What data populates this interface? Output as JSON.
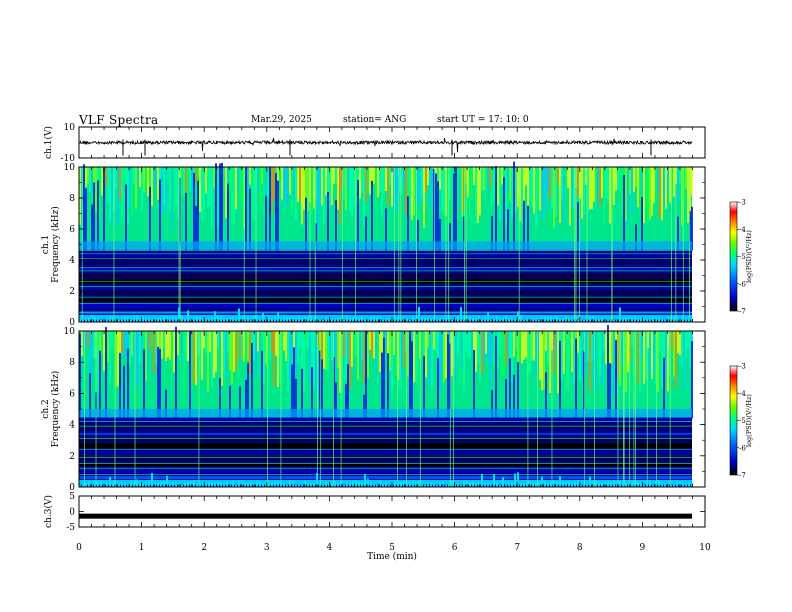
{
  "header": {
    "title": "VLF Spectra",
    "date": "Mar.29, 2025",
    "station": "station= ANG",
    "start": "start  UT  =   17: 10: 0"
  },
  "colors": {
    "spectrogram_background": "#00007a",
    "colormap": [
      "#000000",
      "#00004a",
      "#0000c8",
      "#0050ff",
      "#00c8ff",
      "#00ff96",
      "#50ff00",
      "#ffff00",
      "#ff8000",
      "#ff0000",
      "#ffffff"
    ]
  },
  "chart_data": [
    {
      "type": "line",
      "panel": "ch1-waveform",
      "ylabel": "ch.1(V)",
      "ylim": [
        -10,
        10
      ],
      "yticks": [
        "10",
        "-10"
      ],
      "xlim": [
        0,
        10
      ],
      "baseline": 0,
      "grid": false
    },
    {
      "type": "heatmap",
      "panel": "ch1-spectrogram",
      "ylabel_channel": "ch.1",
      "ylabel": "Frequency (kHz)",
      "ylim": [
        0,
        10
      ],
      "yticks": [
        "0",
        "2",
        "4",
        "6",
        "8",
        "10"
      ],
      "xlim": [
        0,
        10
      ],
      "colorbar": {
        "label": "log(PSD)(V²/Hz)",
        "range": [
          -7,
          -3
        ],
        "ticks": [
          "-3",
          "-4",
          "-5",
          "-6",
          "-7"
        ]
      },
      "grid": false
    },
    {
      "type": "heatmap",
      "panel": "ch2-spectrogram",
      "ylabel_channel": "ch.2",
      "ylabel": "Frequency (kHz)",
      "ylim": [
        0,
        10
      ],
      "yticks": [
        "0",
        "2",
        "4",
        "6",
        "8",
        "10"
      ],
      "xlim": [
        0,
        10
      ],
      "colorbar": {
        "label": "log(PSD)(V²/Hz)",
        "range": [
          -7,
          -3
        ],
        "ticks": [
          "-3",
          "-4",
          "-5",
          "-6",
          "-7"
        ]
      },
      "grid": false
    },
    {
      "type": "line",
      "panel": "ch3-waveform",
      "ylabel": "ch.3(V)",
      "ylim": [
        -5,
        5
      ],
      "yticks": [
        "5",
        "0",
        "-5"
      ],
      "xlim": [
        0,
        10
      ],
      "baseline": -1.5,
      "grid": false
    }
  ],
  "xaxis": {
    "label": "Time (min)",
    "ticks": [
      "0",
      "1",
      "2",
      "3",
      "4",
      "5",
      "6",
      "7",
      "8",
      "9",
      "10"
    ]
  }
}
